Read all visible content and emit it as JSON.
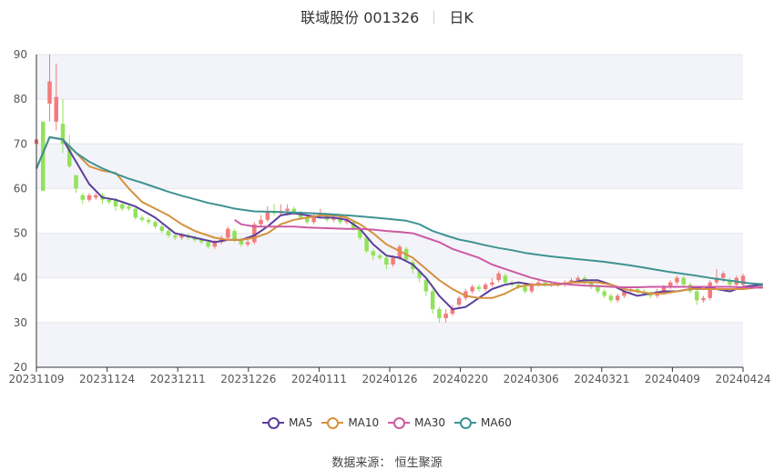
{
  "title": {
    "name": "联域股份 001326",
    "period": "日K"
  },
  "legend": [
    {
      "label": "MA5",
      "color": "#5b3f9b"
    },
    {
      "label": "MA10",
      "color": "#d6913e"
    },
    {
      "label": "MA30",
      "color": "#cc5aa4"
    },
    {
      "label": "MA60",
      "color": "#3e9393"
    }
  ],
  "source": {
    "label": "数据来源：",
    "value": "恒生聚源"
  },
  "colors": {
    "up": "#f27c7c",
    "down": "#92e25a",
    "band": "#f3f4f9",
    "grid": "#e4e6ee"
  },
  "chart_data": {
    "type": "candlestick",
    "ylim": [
      20,
      90
    ],
    "yticks": [
      20,
      30,
      40,
      50,
      60,
      70,
      80,
      90
    ],
    "x_tick_labels": [
      "20231109",
      "20231124",
      "20231211",
      "20231226",
      "20240111",
      "20240126",
      "20240220",
      "20240306",
      "20240321",
      "20240409",
      "20240424"
    ],
    "candles": [
      [
        70,
        71,
        77,
        65
      ],
      [
        75,
        59.5,
        75,
        59.5
      ],
      [
        79,
        84,
        90,
        75
      ],
      [
        75,
        80.5,
        88,
        73
      ],
      [
        74.5,
        70,
        80,
        68
      ],
      [
        69.5,
        65,
        72,
        64.5
      ],
      [
        63,
        60,
        63,
        59
      ],
      [
        58.5,
        57.5,
        59,
        56.5
      ],
      [
        57.5,
        58.5,
        59,
        57
      ],
      [
        58,
        58.5,
        59,
        57.5
      ],
      [
        58.5,
        57.5,
        59,
        56.5
      ],
      [
        57.5,
        57,
        58,
        56.5
      ],
      [
        57.5,
        56,
        58,
        55
      ],
      [
        56.5,
        55.5,
        57,
        55
      ],
      [
        56,
        55.5,
        56.5,
        55
      ],
      [
        55.5,
        53.5,
        56,
        53
      ],
      [
        53.5,
        53,
        54,
        52.5
      ],
      [
        53,
        52.5,
        53.5,
        52
      ],
      [
        52.5,
        51.5,
        53,
        51
      ],
      [
        51.5,
        50.5,
        52,
        50
      ],
      [
        50.5,
        49.5,
        51,
        49
      ],
      [
        49.5,
        49,
        50,
        48.5
      ],
      [
        49,
        49.5,
        50,
        48.5
      ],
      [
        49.5,
        49,
        50,
        48.5
      ],
      [
        49,
        48.5,
        49.5,
        48
      ],
      [
        48.5,
        48,
        49,
        47.5
      ],
      [
        48,
        47,
        48.5,
        46.5
      ],
      [
        47,
        48,
        48.5,
        46.5
      ],
      [
        48,
        49,
        49.5,
        47.5
      ],
      [
        49,
        51,
        51.5,
        48.5
      ],
      [
        50.5,
        48.5,
        51,
        48
      ],
      [
        48.5,
        47.5,
        49,
        47
      ],
      [
        47.5,
        48,
        49,
        47
      ],
      [
        48,
        52,
        52.5,
        47.5
      ],
      [
        52,
        53,
        54,
        51.5
      ],
      [
        53,
        55,
        56,
        52.5
      ],
      [
        55,
        54.5,
        56.5,
        54
      ],
      [
        54.5,
        55,
        56.5,
        54
      ],
      [
        55,
        55.5,
        56.5,
        54
      ],
      [
        55.5,
        54.5,
        56,
        54
      ],
      [
        54.5,
        53.5,
        55,
        53
      ],
      [
        53.5,
        52.5,
        54,
        52
      ],
      [
        52.5,
        54,
        54.5,
        52
      ],
      [
        54,
        54.5,
        55.5,
        53.5
      ],
      [
        54,
        53,
        54.5,
        52.5
      ],
      [
        53,
        53.5,
        54,
        52.5
      ],
      [
        53.5,
        52.5,
        54,
        52
      ],
      [
        52.5,
        53,
        53.5,
        52
      ],
      [
        52.5,
        51,
        53,
        50.5
      ],
      [
        51,
        49,
        51.5,
        48.5
      ],
      [
        49,
        46,
        49.5,
        45.5
      ],
      [
        46,
        45,
        46.5,
        44
      ],
      [
        45,
        44.5,
        45.5,
        44
      ],
      [
        44.5,
        43,
        45,
        42
      ],
      [
        43,
        44.5,
        45,
        42.5
      ],
      [
        44.5,
        47,
        47.5,
        44
      ],
      [
        46.5,
        44,
        47,
        43.5
      ],
      [
        43.5,
        42,
        44,
        41
      ],
      [
        41.5,
        40,
        42,
        39
      ],
      [
        39.5,
        37,
        40,
        36
      ],
      [
        37,
        33,
        37.5,
        32
      ],
      [
        33,
        31,
        33.5,
        30
      ],
      [
        31,
        32,
        33,
        30
      ],
      [
        32,
        33,
        34,
        31.5
      ],
      [
        34,
        35.5,
        36,
        33.5
      ],
      [
        35.5,
        37,
        37.5,
        35
      ],
      [
        37,
        38,
        38.5,
        36.5
      ],
      [
        38,
        37.5,
        38.5,
        37
      ],
      [
        37.5,
        38.5,
        39,
        37
      ],
      [
        38.5,
        39,
        40,
        38
      ],
      [
        39.5,
        41,
        41.5,
        39
      ],
      [
        40.5,
        39,
        41,
        38.5
      ],
      [
        39,
        38.5,
        39.5,
        38
      ],
      [
        38.5,
        38,
        39,
        37.5
      ],
      [
        38,
        37,
        38.5,
        36.5
      ],
      [
        37,
        38.5,
        39,
        36.5
      ],
      [
        38.5,
        39,
        39.5,
        38
      ],
      [
        39,
        38.5,
        39.5,
        38
      ],
      [
        38.5,
        38.5,
        39,
        38
      ],
      [
        38.5,
        38.5,
        39,
        38
      ],
      [
        38.5,
        39,
        39.5,
        38
      ],
      [
        39,
        39.5,
        40,
        38.5
      ],
      [
        39.5,
        40,
        40.5,
        39
      ],
      [
        40,
        39,
        40.5,
        38.5
      ],
      [
        39,
        38,
        39.5,
        37.5
      ],
      [
        38,
        37,
        38.5,
        36.5
      ],
      [
        37,
        36,
        37.5,
        35.5
      ],
      [
        36,
        35,
        36.5,
        34.5
      ],
      [
        35,
        36,
        36.5,
        34.5
      ],
      [
        36,
        37,
        37.5,
        35.5
      ],
      [
        37,
        37.5,
        38,
        36.5
      ],
      [
        37.5,
        37,
        38,
        36.5
      ],
      [
        37,
        36.5,
        37.5,
        36
      ],
      [
        36.5,
        36,
        37,
        35.5
      ],
      [
        36,
        37,
        37.5,
        35.5
      ],
      [
        37,
        38,
        38.5,
        36.5
      ],
      [
        38,
        39,
        39.5,
        37.5
      ],
      [
        39,
        40,
        40.5,
        38.5
      ],
      [
        40,
        38.5,
        40.5,
        38
      ],
      [
        38.5,
        37,
        39,
        36.5
      ],
      [
        37,
        35,
        37.5,
        34
      ],
      [
        35,
        35.5,
        36,
        34.5
      ],
      [
        35.5,
        39,
        39.5,
        35
      ],
      [
        39,
        40,
        42,
        38.5
      ],
      [
        40,
        41,
        41.5,
        39
      ],
      [
        39.5,
        38.5,
        40,
        38
      ],
      [
        38.5,
        40,
        40.5,
        38
      ],
      [
        38.5,
        40.5,
        41,
        38
      ]
    ],
    "ma": {
      "MA5": [
        [
          0,
          64.5
        ],
        [
          2,
          71.5
        ],
        [
          4,
          71
        ],
        [
          6,
          66
        ],
        [
          8,
          61
        ],
        [
          10,
          58
        ],
        [
          12,
          57.5
        ],
        [
          15,
          56
        ],
        [
          18,
          53.5
        ],
        [
          21,
          50
        ],
        [
          24,
          49
        ],
        [
          27,
          48
        ],
        [
          29,
          48.5
        ],
        [
          31,
          48.5
        ],
        [
          33,
          49.5
        ],
        [
          35,
          51.5
        ],
        [
          37,
          54
        ],
        [
          39,
          54.5
        ],
        [
          41,
          54
        ],
        [
          43,
          53.5
        ],
        [
          45,
          53.5
        ],
        [
          47,
          53
        ],
        [
          49,
          51
        ],
        [
          51,
          47.5
        ],
        [
          53,
          45
        ],
        [
          55,
          44.5
        ],
        [
          57,
          43
        ],
        [
          59,
          40
        ],
        [
          61,
          36
        ],
        [
          63,
          33
        ],
        [
          65,
          33.5
        ],
        [
          67,
          35.5
        ],
        [
          69,
          37.5
        ],
        [
          71,
          38.5
        ],
        [
          73,
          39
        ],
        [
          75,
          38.5
        ],
        [
          77,
          38.5
        ],
        [
          79,
          38.5
        ],
        [
          81,
          39
        ],
        [
          83,
          39.5
        ],
        [
          85,
          39.5
        ],
        [
          87,
          38.5
        ],
        [
          89,
          37
        ],
        [
          91,
          36
        ],
        [
          93,
          36.5
        ],
        [
          95,
          37
        ],
        [
          97,
          37
        ],
        [
          99,
          37.5
        ],
        [
          101,
          38
        ],
        [
          103,
          37.5
        ],
        [
          105,
          37
        ],
        [
          107,
          38
        ],
        [
          110,
          38.5
        ]
      ],
      "MA10": [
        [
          0,
          64.5
        ],
        [
          2,
          71.5
        ],
        [
          4,
          71
        ],
        [
          6,
          68
        ],
        [
          8,
          65
        ],
        [
          10,
          64
        ],
        [
          12,
          63.5
        ],
        [
          14,
          60
        ],
        [
          16,
          57
        ],
        [
          18,
          55.5
        ],
        [
          20,
          54
        ],
        [
          22,
          52
        ],
        [
          24,
          50.5
        ],
        [
          27,
          49
        ],
        [
          29,
          48.5
        ],
        [
          31,
          48.5
        ],
        [
          33,
          49
        ],
        [
          35,
          50
        ],
        [
          37,
          52
        ],
        [
          39,
          53
        ],
        [
          41,
          53.5
        ],
        [
          43,
          54
        ],
        [
          45,
          54
        ],
        [
          47,
          53.5
        ],
        [
          49,
          52
        ],
        [
          51,
          50
        ],
        [
          53,
          47.5
        ],
        [
          55,
          46
        ],
        [
          57,
          44.5
        ],
        [
          59,
          42
        ],
        [
          61,
          39.5
        ],
        [
          63,
          37.5
        ],
        [
          65,
          36
        ],
        [
          67,
          35.5
        ],
        [
          69,
          35.5
        ],
        [
          71,
          36.5
        ],
        [
          73,
          38
        ],
        [
          75,
          38.5
        ],
        [
          77,
          38.5
        ],
        [
          79,
          38.5
        ],
        [
          81,
          39
        ],
        [
          83,
          39
        ],
        [
          85,
          39
        ],
        [
          87,
          38.5
        ],
        [
          89,
          37.5
        ],
        [
          91,
          37
        ],
        [
          93,
          36.5
        ],
        [
          95,
          36.5
        ],
        [
          97,
          37
        ],
        [
          99,
          37.5
        ],
        [
          101,
          37.5
        ],
        [
          103,
          37.5
        ],
        [
          105,
          37.5
        ],
        [
          107,
          37.5
        ],
        [
          110,
          38
        ]
      ],
      "MA30": [
        [
          30,
          53
        ],
        [
          31,
          52
        ],
        [
          33,
          51.5
        ],
        [
          35,
          51.5
        ],
        [
          37,
          51.5
        ],
        [
          39,
          51.5
        ],
        [
          41,
          51.3
        ],
        [
          43,
          51.2
        ],
        [
          45,
          51.1
        ],
        [
          47,
          51
        ],
        [
          49,
          51
        ],
        [
          51,
          50.8
        ],
        [
          53,
          50.5
        ],
        [
          55,
          50.3
        ],
        [
          57,
          50
        ],
        [
          59,
          49
        ],
        [
          61,
          48
        ],
        [
          63,
          46.5
        ],
        [
          65,
          45.5
        ],
        [
          67,
          44.5
        ],
        [
          69,
          43
        ],
        [
          71,
          42
        ],
        [
          73,
          41
        ],
        [
          75,
          40
        ],
        [
          77,
          39.3
        ],
        [
          79,
          38.8
        ],
        [
          81,
          38.5
        ],
        [
          83,
          38.3
        ],
        [
          85,
          38.2
        ],
        [
          87,
          38
        ],
        [
          89,
          37.9
        ],
        [
          91,
          37.9
        ],
        [
          93,
          38
        ],
        [
          95,
          38
        ],
        [
          97,
          38
        ],
        [
          99,
          38
        ],
        [
          101,
          38
        ],
        [
          103,
          38
        ],
        [
          105,
          38
        ],
        [
          107,
          37.9
        ],
        [
          110,
          37.8
        ]
      ],
      "MA60": [
        [
          0,
          64.5
        ],
        [
          2,
          71.5
        ],
        [
          4,
          71
        ],
        [
          6,
          68
        ],
        [
          8,
          66
        ],
        [
          10,
          64.5
        ],
        [
          12,
          63.3
        ],
        [
          14,
          62.2
        ],
        [
          16,
          61.3
        ],
        [
          18,
          60.3
        ],
        [
          20,
          59.3
        ],
        [
          22,
          58.4
        ],
        [
          24,
          57.6
        ],
        [
          26,
          56.8
        ],
        [
          28,
          56.2
        ],
        [
          30,
          55.5
        ],
        [
          33,
          54.9
        ],
        [
          36,
          54.8
        ],
        [
          40,
          54.6
        ],
        [
          44,
          54.3
        ],
        [
          48,
          53.9
        ],
        [
          52,
          53.4
        ],
        [
          56,
          52.8
        ],
        [
          58,
          52
        ],
        [
          60,
          50.5
        ],
        [
          62,
          49.5
        ],
        [
          64,
          48.6
        ],
        [
          66,
          48
        ],
        [
          68,
          47.3
        ],
        [
          70,
          46.7
        ],
        [
          72,
          46.2
        ],
        [
          74,
          45.6
        ],
        [
          76,
          45.2
        ],
        [
          78,
          44.8
        ],
        [
          80,
          44.5
        ],
        [
          82,
          44.2
        ],
        [
          84,
          43.9
        ],
        [
          86,
          43.6
        ],
        [
          88,
          43.2
        ],
        [
          90,
          42.8
        ],
        [
          92,
          42.3
        ],
        [
          94,
          41.8
        ],
        [
          96,
          41.3
        ],
        [
          98,
          40.9
        ],
        [
          100,
          40.5
        ],
        [
          102,
          40
        ],
        [
          104,
          39.6
        ],
        [
          106,
          39.2
        ],
        [
          108,
          38.8
        ],
        [
          110,
          38.6
        ]
      ]
    }
  }
}
